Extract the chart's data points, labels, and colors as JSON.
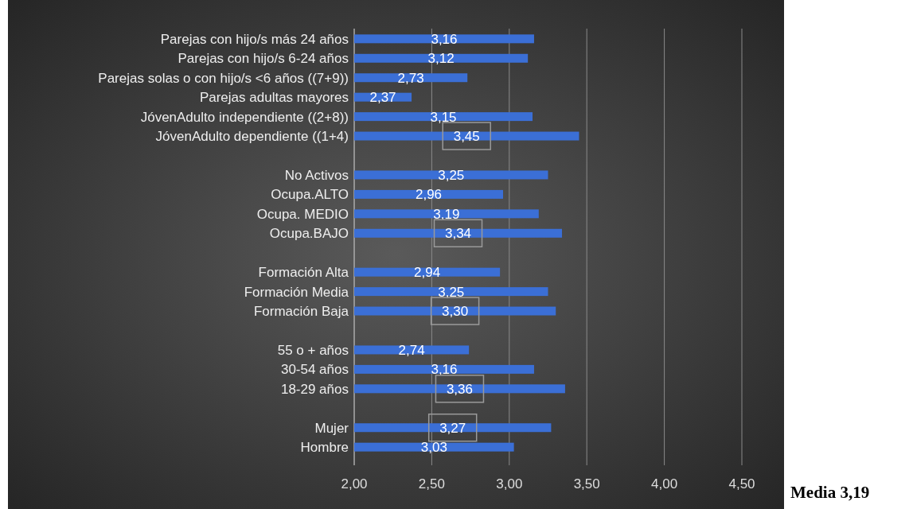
{
  "chart_data": {
    "type": "bar",
    "orientation": "horizontal",
    "categories": [
      "Parejas con hijo/s más 24 años",
      "Parejas con hijo/s 6-24 años",
      "Parejas solas o con hijo/s <6 años ((7+9))",
      "Parejas adultas mayores",
      "JóvenAdulto independiente ((2+8))",
      "JóvenAdulto dependiente ((1+4)",
      null,
      "No Activos",
      "Ocupa.ALTO",
      "Ocupa. MEDIO",
      "Ocupa.BAJO",
      null,
      "Formación Alta",
      "Formación Media",
      "Formación Baja",
      null,
      "55 o + años",
      "30-54 años",
      "18-29 años",
      null,
      "Mujer",
      "Hombre"
    ],
    "values": [
      3.16,
      3.12,
      2.73,
      2.37,
      3.15,
      3.45,
      null,
      3.25,
      2.96,
      3.19,
      3.34,
      null,
      2.94,
      3.25,
      3.3,
      null,
      2.74,
      3.16,
      3.36,
      null,
      3.27,
      3.03
    ],
    "value_labels": [
      "3,16",
      "3,12",
      "2,73",
      "2,37",
      "3,15",
      "3,45",
      null,
      "3,25",
      "2,96",
      "3,19",
      "3,34",
      null,
      "2,94",
      "3,25",
      "3,30",
      null,
      "2,74",
      "3,16",
      "3,36",
      null,
      "3,27",
      "3,03"
    ],
    "color": "#3b6fd6",
    "xlim": [
      2,
      4.5
    ],
    "xticks": [
      {
        "value": 2,
        "label": "2,00"
      },
      {
        "value": 2.5,
        "label": "2,50"
      },
      {
        "value": 3,
        "label": "3,00"
      },
      {
        "value": 3.5,
        "label": "3,50"
      },
      {
        "value": 4,
        "label": "4,00"
      },
      {
        "value": 4.5,
        "label": "4,50"
      }
    ],
    "grid": "x",
    "annotations": [
      "Media 3,19"
    ]
  }
}
